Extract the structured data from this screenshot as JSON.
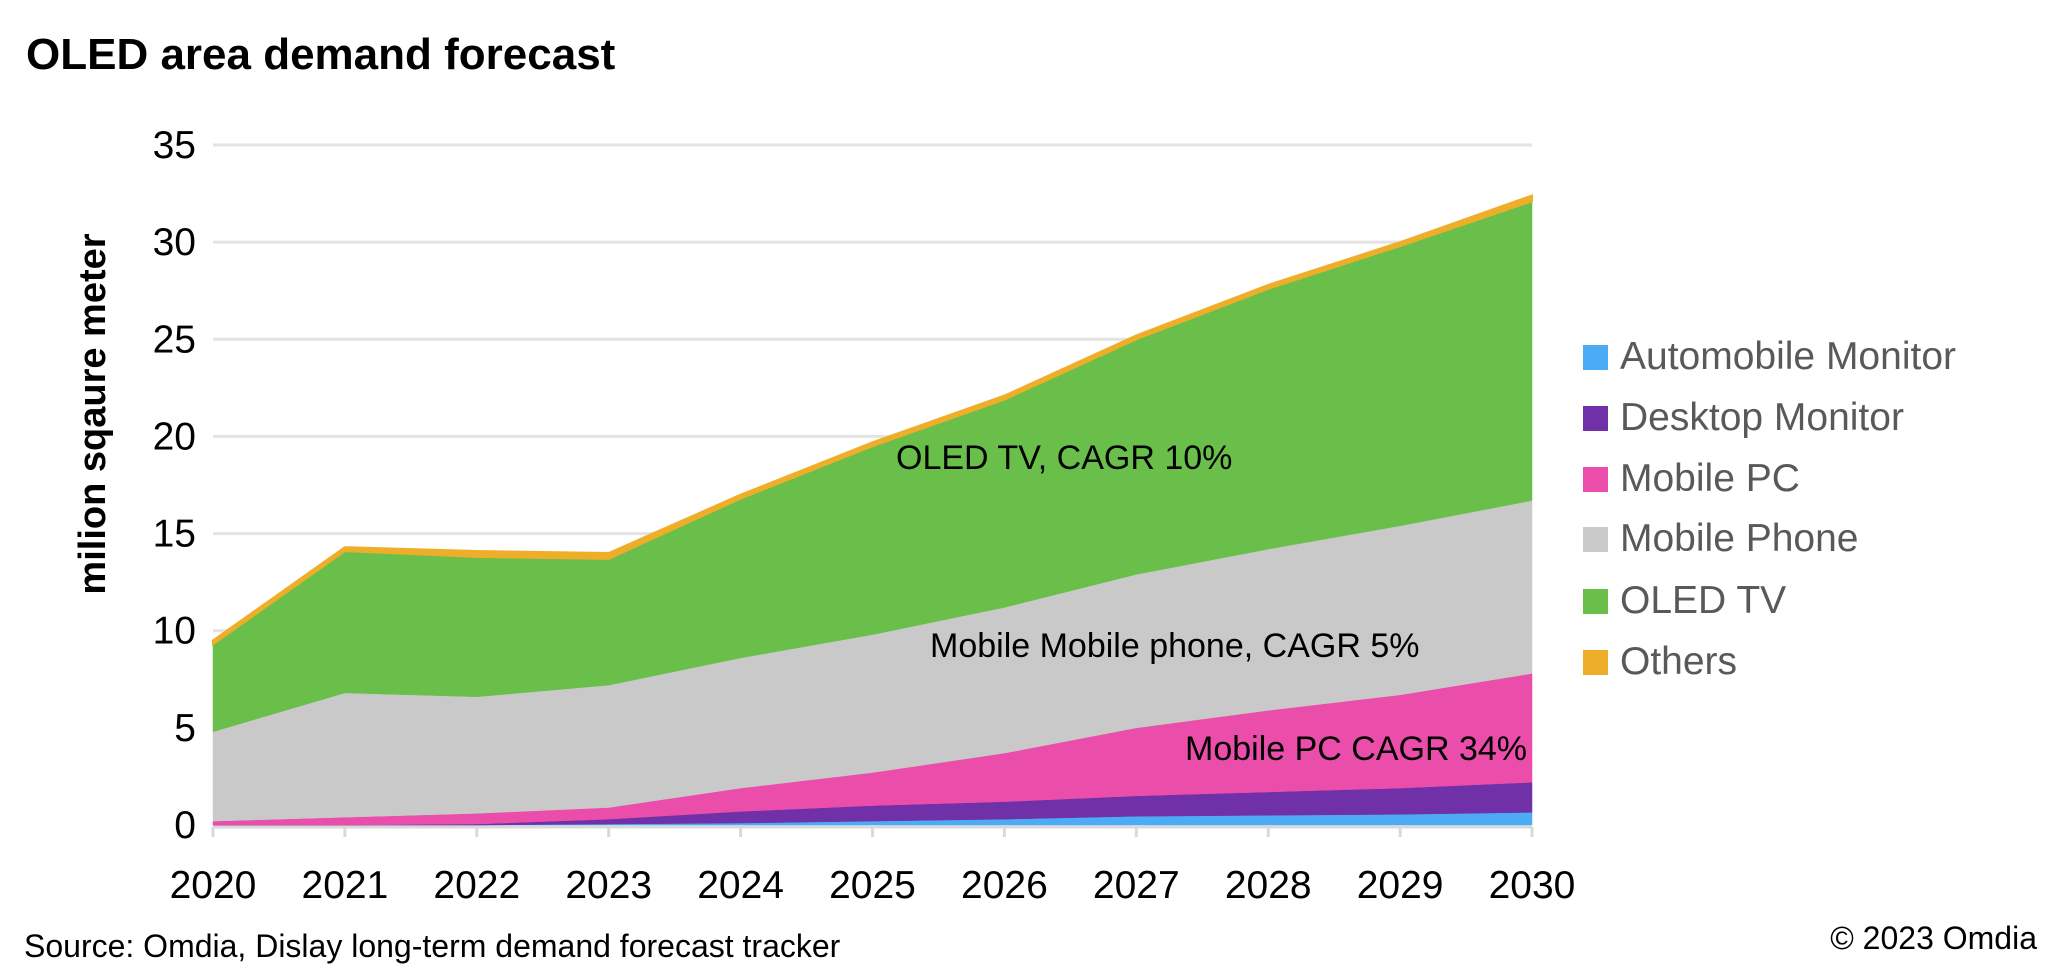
{
  "chart_data": {
    "type": "area",
    "stacked": true,
    "title": "OLED area demand forecast",
    "xlabel": "",
    "ylabel": "milion sqaure meter",
    "ylim": [
      0,
      35
    ],
    "yticks": [
      "0",
      "5",
      "10",
      "15",
      "20",
      "25",
      "30",
      "35"
    ],
    "grid": true,
    "legend_position": "right",
    "categories": [
      "2020",
      "2021",
      "2022",
      "2023",
      "2024",
      "2025",
      "2026",
      "2027",
      "2028",
      "2029",
      "2030"
    ],
    "series": [
      {
        "name": "Automobile Monitor",
        "color": "#4BACF5",
        "values": [
          0,
          0,
          0,
          0.05,
          0.1,
          0.2,
          0.3,
          0.45,
          0.5,
          0.55,
          0.65
        ]
      },
      {
        "name": "Desktop Monitor",
        "color": "#7030A8",
        "values": [
          0,
          0,
          0.05,
          0.25,
          0.6,
          0.8,
          0.9,
          1.05,
          1.2,
          1.35,
          1.55
        ]
      },
      {
        "name": "Mobile PC",
        "color": "#EA4DAA",
        "values": [
          0.2,
          0.4,
          0.55,
          0.6,
          1.2,
          1.7,
          2.5,
          3.5,
          4.2,
          4.8,
          5.6
        ]
      },
      {
        "name": "Mobile Phone",
        "color": "#C9C9C9",
        "values": [
          4.6,
          6.4,
          6.0,
          6.3,
          6.7,
          7.1,
          7.5,
          7.9,
          8.3,
          8.7,
          8.9
        ]
      },
      {
        "name": "OLED TV",
        "color": "#6ABF4B",
        "values": [
          4.5,
          7.3,
          7.2,
          6.5,
          8.2,
          9.7,
          10.7,
          12.1,
          13.4,
          14.4,
          15.4
        ]
      },
      {
        "name": "Others",
        "color": "#EFAE2A",
        "values": [
          0.2,
          0.2,
          0.3,
          0.3,
          0.2,
          0.2,
          0.2,
          0.2,
          0.2,
          0.2,
          0.3
        ]
      }
    ],
    "annotations": [
      "OLED TV, CAGR 10%",
      "Mobile Mobile phone, CAGR 5%",
      "Mobile PC CAGR 34%"
    ]
  },
  "footer": {
    "source": "Source: Omdia, Dislay long-term demand forecast tracker",
    "copyright": "© 2023 Omdia"
  }
}
